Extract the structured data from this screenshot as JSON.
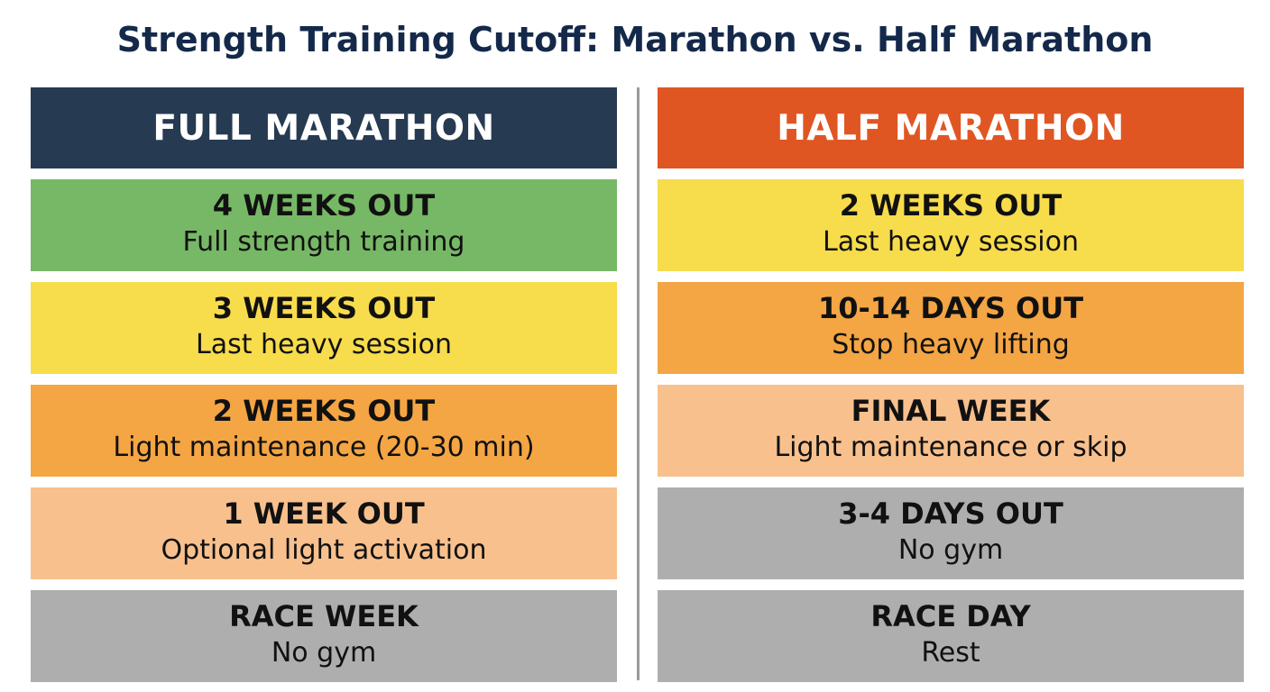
{
  "title": "Strength Training Cutoff: Marathon vs. Half Marathon",
  "columns": [
    {
      "header": "FULL MARATHON",
      "header_color": "#263a52",
      "stages": [
        {
          "label": "4 WEEKS OUT",
          "desc": "Full strength training",
          "color": "#77b866"
        },
        {
          "label": "3 WEEKS OUT",
          "desc": "Last heavy session",
          "color": "#f7dc4c"
        },
        {
          "label": "2 WEEKS OUT",
          "desc": "Light maintenance (20-30 min)",
          "color": "#f4a544"
        },
        {
          "label": "1 WEEK OUT",
          "desc": "Optional light activation",
          "color": "#f8c08d"
        },
        {
          "label": "RACE WEEK",
          "desc": "No gym",
          "color": "#aeaeae"
        }
      ]
    },
    {
      "header": "HALF MARATHON",
      "header_color": "#e05623",
      "stages": [
        {
          "label": "2 WEEKS OUT",
          "desc": "Last heavy session",
          "color": "#f7dc4c"
        },
        {
          "label": "10-14 DAYS OUT",
          "desc": "Stop heavy lifting",
          "color": "#f4a544"
        },
        {
          "label": "FINAL WEEK",
          "desc": "Light maintenance or skip",
          "color": "#f8c08d"
        },
        {
          "label": "3-4 DAYS OUT",
          "desc": "No gym",
          "color": "#aeaeae"
        },
        {
          "label": "RACE DAY",
          "desc": "Rest",
          "color": "#aeaeae"
        }
      ]
    }
  ]
}
